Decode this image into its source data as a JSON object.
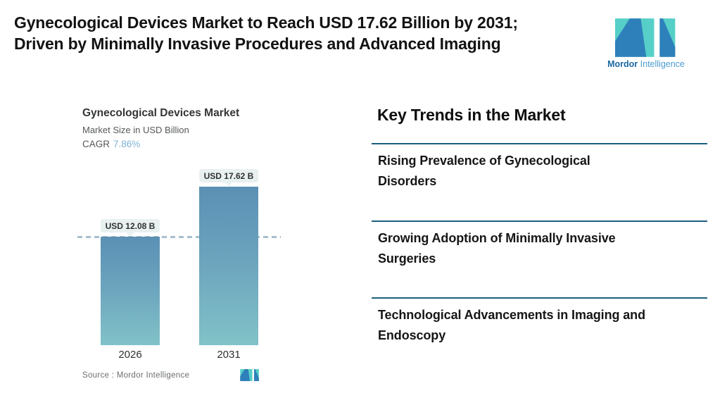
{
  "header": {
    "title_line1": "Gynecological Devices Market to Reach USD 17.62 Billion by 2031;",
    "title_line2": "Driven by Minimally Invasive Procedures and Advanced Imaging",
    "brand": {
      "word_bold": "Mordor",
      "word_light": "Intelligence"
    }
  },
  "chart": {
    "title": "Gynecological Devices Market",
    "subtitle": "Market Size in USD Billion",
    "cagr_label": "CAGR",
    "cagr_value": "7.86%",
    "source_label": "Source :  Mordor Intelligence",
    "bars": [
      {
        "year": "2026",
        "callout": "USD 12.08 B"
      },
      {
        "year": "2031",
        "callout": "USD 17.62 B"
      }
    ]
  },
  "chart_data": {
    "type": "bar",
    "categories": [
      "2026",
      "2031"
    ],
    "values": [
      12.08,
      17.62
    ],
    "title": "Gynecological Devices Market",
    "subtitle": "Market Size in USD Billion",
    "unit": "USD Billion",
    "cagr": "7.86%",
    "data_labels": [
      "USD 12.08 B",
      "USD 17.62 B"
    ],
    "reference_line": 12.08,
    "ylim": [
      0,
      17.62
    ],
    "grid": false,
    "legend": false,
    "source": "Mordor Intelligence",
    "colors": {
      "bar_gradient_top": "#5b90b4",
      "bar_gradient_bottom": "#81c2c8",
      "callout_bg": "#e8f0f0",
      "reference_dash": "#a7bfcb",
      "cagr_value": "#7fb2d4"
    }
  },
  "trends": {
    "heading": "Key Trends in the Market",
    "items": [
      "Rising Prevalence of Gynecological\nDisorders",
      "Growing Adoption of Minimally Invasive\nSurgeries",
      "Technological Advancements in Imaging and\nEndoscopy"
    ],
    "divider_color": "#1d5e7e"
  },
  "brand_colors": {
    "logo_blue": "#2e80ba",
    "logo_teal": "#56cfc8",
    "wordmark_dark": "#1a67a2",
    "wordmark_light": "#4b9bd0"
  }
}
